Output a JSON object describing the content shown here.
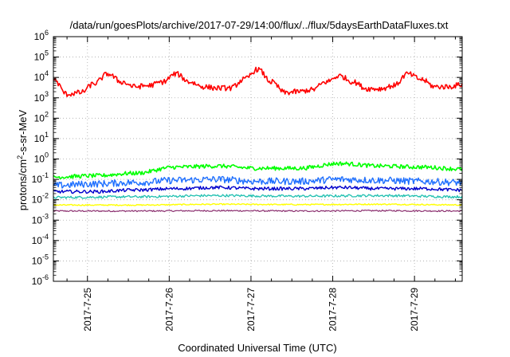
{
  "chart_data": {
    "type": "line",
    "title": "/data/run/goesPlots/archive/2017-07-29/14:00/flux/../flux/5daysEarthDataFluxes.txt",
    "xlabel": "Coordinated Universal Time (UTC)",
    "ylabel": "protons/cm²-s-sr-MeV",
    "ylabel_parts": {
      "pre": "protons/cm",
      "sup": "2",
      "post": "-s-sr-MeV"
    },
    "y_scale": "log",
    "ylim": [
      1e-06,
      1000000.0
    ],
    "y_ticks": [
      {
        "exp": "-6"
      },
      {
        "exp": "-5"
      },
      {
        "exp": "-4"
      },
      {
        "exp": "-3"
      },
      {
        "exp": "-2"
      },
      {
        "exp": "-1"
      },
      {
        "exp": "0"
      },
      {
        "exp": "1"
      },
      {
        "exp": "2"
      },
      {
        "exp": "3"
      },
      {
        "exp": "4"
      },
      {
        "exp": "5"
      },
      {
        "exp": "6"
      }
    ],
    "xlim": [
      "2017-07-24T14:00",
      "2017-07-29T14:00"
    ],
    "x_ticks": [
      "2017-7-25",
      "2017-7-26",
      "2017-7-27",
      "2017-7-28",
      "2017-7-29"
    ],
    "grid": true,
    "legend": "none",
    "series": [
      {
        "color": "#ff0000",
        "x": [
          "2017-07-24T14:00",
          "2017-07-24T18:00",
          "2017-07-24T22:00",
          "2017-07-25T02:00",
          "2017-07-25T06:00",
          "2017-07-25T10:00",
          "2017-07-25T14:00",
          "2017-07-25T18:00",
          "2017-07-25T22:00",
          "2017-07-26T02:00",
          "2017-07-26T06:00",
          "2017-07-26T10:00",
          "2017-07-26T14:00",
          "2017-07-26T18:00",
          "2017-07-26T22:00",
          "2017-07-27T02:00",
          "2017-07-27T06:00",
          "2017-07-27T10:00",
          "2017-07-27T14:00",
          "2017-07-27T18:00",
          "2017-07-27T22:00",
          "2017-07-28T02:00",
          "2017-07-28T06:00",
          "2017-07-28T10:00",
          "2017-07-28T14:00",
          "2017-07-28T18:00",
          "2017-07-28T22:00",
          "2017-07-29T02:00",
          "2017-07-29T06:00",
          "2017-07-29T10:00",
          "2017-07-29T14:00"
        ],
        "values": [
          8000,
          1500,
          1800,
          5000,
          15000,
          6000,
          3500,
          4000,
          6000,
          15000,
          6000,
          3500,
          3000,
          3000,
          8000,
          25000,
          6000,
          1800,
          2000,
          2500,
          6000,
          12000,
          6000,
          2800,
          2800,
          4000,
          15000,
          8000,
          3500,
          3500,
          4500
        ]
      },
      {
        "color": "#00ff00",
        "x": [
          "2017-07-24T14:00",
          "2017-07-25T02:00",
          "2017-07-25T14:00",
          "2017-07-26T02:00",
          "2017-07-26T14:00",
          "2017-07-27T02:00",
          "2017-07-27T14:00",
          "2017-07-28T02:00",
          "2017-07-28T14:00",
          "2017-07-29T02:00",
          "2017-07-29T14:00"
        ],
        "values": [
          0.13,
          0.15,
          0.2,
          0.4,
          0.45,
          0.35,
          0.35,
          0.6,
          0.45,
          0.4,
          0.32
        ]
      },
      {
        "color": "#1e6fff",
        "x": [
          "2017-07-24T14:00",
          "2017-07-25T02:00",
          "2017-07-25T14:00",
          "2017-07-26T02:00",
          "2017-07-26T14:00",
          "2017-07-27T02:00",
          "2017-07-27T14:00",
          "2017-07-28T02:00",
          "2017-07-28T14:00",
          "2017-07-29T02:00",
          "2017-07-29T14:00"
        ],
        "values": [
          0.05,
          0.06,
          0.07,
          0.09,
          0.1,
          0.08,
          0.08,
          0.1,
          0.09,
          0.08,
          0.07
        ]
      },
      {
        "color": "#0000cc",
        "x": [
          "2017-07-24T14:00",
          "2017-07-25T02:00",
          "2017-07-25T14:00",
          "2017-07-26T02:00",
          "2017-07-26T14:00",
          "2017-07-27T02:00",
          "2017-07-27T14:00",
          "2017-07-28T02:00",
          "2017-07-28T14:00",
          "2017-07-29T02:00",
          "2017-07-29T14:00"
        ],
        "values": [
          0.025,
          0.025,
          0.03,
          0.035,
          0.04,
          0.035,
          0.035,
          0.04,
          0.035,
          0.035,
          0.03
        ]
      },
      {
        "color": "#20c0b0",
        "x": [
          "2017-07-24T14:00",
          "2017-07-25T14:00",
          "2017-07-26T14:00",
          "2017-07-27T14:00",
          "2017-07-28T14:00",
          "2017-07-29T14:00"
        ],
        "values": [
          0.013,
          0.014,
          0.016,
          0.015,
          0.016,
          0.014
        ]
      },
      {
        "color": "#ffff00",
        "x": [
          "2017-07-24T14:00",
          "2017-07-25T14:00",
          "2017-07-26T14:00",
          "2017-07-27T14:00",
          "2017-07-28T14:00",
          "2017-07-29T14:00"
        ],
        "values": [
          0.0055,
          0.0055,
          0.006,
          0.0058,
          0.006,
          0.0056
        ]
      },
      {
        "color": "#8b2f6f",
        "x": [
          "2017-07-24T14:00",
          "2017-07-25T14:00",
          "2017-07-26T14:00",
          "2017-07-27T14:00",
          "2017-07-28T14:00",
          "2017-07-29T14:00"
        ],
        "values": [
          0.0028,
          0.0028,
          0.0029,
          0.0028,
          0.0029,
          0.0028
        ]
      }
    ]
  }
}
